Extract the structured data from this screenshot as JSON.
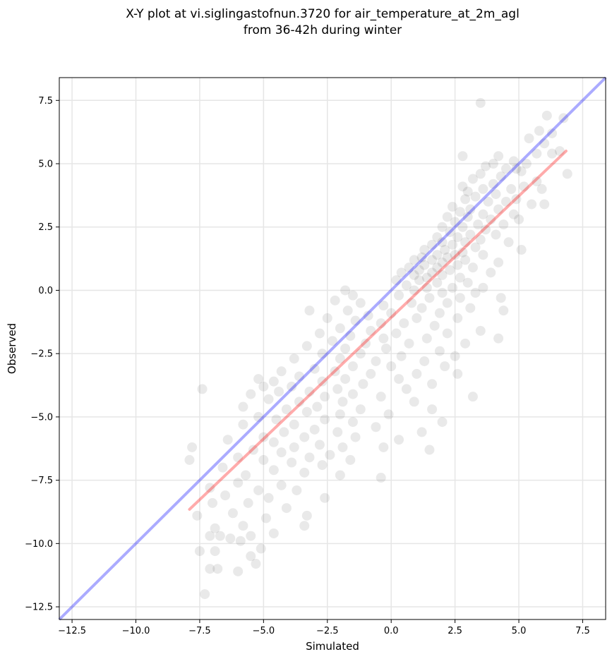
{
  "chart_data": {
    "type": "scatter",
    "title_lines": [
      "X-Y plot at vi.siglingastofnun.3720 for air_temperature_at_2m_agl",
      "from 36-42h during winter"
    ],
    "xlabel": "Simulated",
    "ylabel": "Observed",
    "xlim": [
      -13.0,
      8.4
    ],
    "ylim": [
      -13.0,
      8.4
    ],
    "xticks": [
      -12.5,
      -10.0,
      -7.5,
      -5.0,
      -2.5,
      0.0,
      2.5,
      5.0,
      7.5
    ],
    "yticks": [
      -12.5,
      -10.0,
      -7.5,
      -5.0,
      -2.5,
      0.0,
      2.5,
      5.0,
      7.5
    ],
    "xtick_labels": [
      "−12.5",
      "−10.0",
      "−7.5",
      "−5.0",
      "−2.5",
      "0.0",
      "2.5",
      "5.0",
      "7.5"
    ],
    "ytick_labels": [
      "−12.5",
      "−10.0",
      "−7.5",
      "−5.0",
      "−2.5",
      "0.0",
      "2.5",
      "5.0",
      "7.5"
    ],
    "grid": true,
    "colors": {
      "points": "#000000",
      "identity_line": "#0000ff",
      "fit_line": "#ff0000",
      "grid": "#e6e6e6"
    },
    "identity_line": {
      "x": [
        -13.0,
        8.4
      ],
      "y": [
        -13.0,
        8.4
      ]
    },
    "fit_line": {
      "x": [
        -7.9,
        6.85
      ],
      "y": [
        -8.65,
        5.5
      ]
    },
    "points": [
      [
        3.5,
        7.4
      ],
      [
        6.1,
        6.9
      ],
      [
        6.75,
        6.8
      ],
      [
        5.8,
        6.3
      ],
      [
        6.3,
        6.2
      ],
      [
        5.4,
        6.0
      ],
      [
        6.0,
        5.8
      ],
      [
        6.6,
        5.5
      ],
      [
        5.7,
        5.4
      ],
      [
        4.2,
        5.3
      ],
      [
        2.8,
        5.3
      ],
      [
        4.8,
        5.1
      ],
      [
        5.3,
        5.0
      ],
      [
        6.3,
        5.4
      ],
      [
        4.0,
        5.0
      ],
      [
        3.7,
        4.9
      ],
      [
        4.5,
        4.8
      ],
      [
        4.9,
        4.8
      ],
      [
        5.1,
        4.7
      ],
      [
        3.5,
        4.6
      ],
      [
        6.9,
        4.6
      ],
      [
        4.3,
        4.5
      ],
      [
        3.2,
        4.4
      ],
      [
        5.7,
        4.3
      ],
      [
        4.0,
        4.2
      ],
      [
        2.8,
        4.1
      ],
      [
        5.2,
        4.1
      ],
      [
        3.6,
        4.0
      ],
      [
        4.7,
        4.0
      ],
      [
        5.9,
        4.0
      ],
      [
        3.0,
        3.9
      ],
      [
        4.1,
        3.8
      ],
      [
        3.3,
        3.7
      ],
      [
        4.9,
        3.6
      ],
      [
        2.9,
        3.6
      ],
      [
        3.8,
        3.5
      ],
      [
        4.5,
        3.5
      ],
      [
        5.5,
        3.4
      ],
      [
        6.0,
        3.4
      ],
      [
        2.4,
        3.3
      ],
      [
        3.1,
        3.2
      ],
      [
        4.2,
        3.2
      ],
      [
        2.7,
        3.1
      ],
      [
        3.6,
        3.0
      ],
      [
        4.8,
        3.0
      ],
      [
        2.2,
        2.9
      ],
      [
        3.0,
        2.9
      ],
      [
        3.9,
        2.8
      ],
      [
        5.0,
        2.8
      ],
      [
        2.5,
        2.7
      ],
      [
        3.4,
        2.6
      ],
      [
        4.4,
        2.6
      ],
      [
        2.0,
        2.5
      ],
      [
        2.8,
        2.5
      ],
      [
        3.7,
        2.4
      ],
      [
        2.3,
        2.3
      ],
      [
        3.1,
        2.2
      ],
      [
        4.1,
        2.2
      ],
      [
        1.8,
        2.1
      ],
      [
        2.6,
        2.1
      ],
      [
        3.5,
        2.0
      ],
      [
        2.0,
        1.9
      ],
      [
        2.9,
        1.9
      ],
      [
        4.6,
        1.9
      ],
      [
        1.6,
        1.8
      ],
      [
        2.4,
        1.8
      ],
      [
        3.3,
        1.7
      ],
      [
        1.3,
        1.6
      ],
      [
        2.1,
        1.6
      ],
      [
        5.1,
        1.6
      ],
      [
        2.8,
        1.5
      ],
      [
        1.8,
        1.4
      ],
      [
        2.5,
        1.4
      ],
      [
        3.6,
        1.4
      ],
      [
        1.2,
        1.3
      ],
      [
        2.2,
        1.3
      ],
      [
        0.9,
        1.2
      ],
      [
        1.6,
        1.2
      ],
      [
        2.9,
        1.2
      ],
      [
        2.0,
        1.1
      ],
      [
        4.2,
        1.1
      ],
      [
        1.3,
        1.0
      ],
      [
        2.6,
        1.0
      ],
      [
        0.7,
        0.9
      ],
      [
        1.8,
        0.9
      ],
      [
        3.2,
        0.9
      ],
      [
        1.1,
        0.8
      ],
      [
        2.3,
        0.8
      ],
      [
        0.4,
        0.7
      ],
      [
        1.6,
        0.7
      ],
      [
        3.9,
        0.7
      ],
      [
        0.9,
        0.6
      ],
      [
        2.0,
        0.6
      ],
      [
        1.4,
        0.5
      ],
      [
        2.7,
        0.5
      ],
      [
        0.2,
        0.4
      ],
      [
        1.1,
        0.4
      ],
      [
        1.8,
        0.3
      ],
      [
        3.0,
        0.3
      ],
      [
        0.6,
        0.2
      ],
      [
        1.4,
        0.1
      ],
      [
        2.4,
        0.1
      ],
      [
        3.6,
        0.1
      ],
      [
        0.9,
        0.0
      ],
      [
        2.0,
        -0.1
      ],
      [
        3.3,
        -0.1
      ],
      [
        -1.8,
        0.0
      ],
      [
        -1.5,
        -0.2
      ],
      [
        0.3,
        -0.2
      ],
      [
        1.5,
        -0.3
      ],
      [
        2.7,
        -0.3
      ],
      [
        4.3,
        -0.3
      ],
      [
        -2.2,
        -0.4
      ],
      [
        -1.2,
        -0.5
      ],
      [
        0.8,
        -0.5
      ],
      [
        2.2,
        -0.5
      ],
      [
        -0.3,
        -0.6
      ],
      [
        1.2,
        -0.7
      ],
      [
        3.1,
        -0.7
      ],
      [
        -1.7,
        -0.8
      ],
      [
        -3.2,
        -0.8
      ],
      [
        4.4,
        -0.8
      ],
      [
        0.0,
        -0.9
      ],
      [
        1.9,
        -0.9
      ],
      [
        -0.9,
        -1.0
      ],
      [
        -2.5,
        -1.1
      ],
      [
        1.0,
        -1.1
      ],
      [
        2.6,
        -1.1
      ],
      [
        -1.4,
        -1.2
      ],
      [
        -0.4,
        -1.3
      ],
      [
        0.5,
        -1.3
      ],
      [
        1.7,
        -1.4
      ],
      [
        -2.0,
        -1.5
      ],
      [
        -0.8,
        -1.6
      ],
      [
        3.5,
        -1.6
      ],
      [
        -2.8,
        -1.7
      ],
      [
        0.2,
        -1.7
      ],
      [
        2.2,
        -1.7
      ],
      [
        -1.6,
        -1.8
      ],
      [
        -0.3,
        -1.9
      ],
      [
        1.4,
        -1.9
      ],
      [
        4.2,
        -1.9
      ],
      [
        -2.3,
        -2.0
      ],
      [
        -1.0,
        -2.1
      ],
      [
        0.7,
        -2.1
      ],
      [
        2.9,
        -2.1
      ],
      [
        -3.3,
        -2.2
      ],
      [
        -1.8,
        -2.3
      ],
      [
        -0.2,
        -2.3
      ],
      [
        1.9,
        -2.4
      ],
      [
        -2.7,
        -2.5
      ],
      [
        -1.2,
        -2.5
      ],
      [
        0.4,
        -2.6
      ],
      [
        2.5,
        -2.6
      ],
      [
        -3.8,
        -2.7
      ],
      [
        -2.0,
        -2.7
      ],
      [
        -0.6,
        -2.8
      ],
      [
        1.3,
        -2.8
      ],
      [
        -1.5,
        -3.0
      ],
      [
        0.0,
        -3.0
      ],
      [
        2.1,
        -3.0
      ],
      [
        -3.0,
        -3.1
      ],
      [
        -4.3,
        -3.2
      ],
      [
        -2.2,
        -3.2
      ],
      [
        -0.8,
        -3.3
      ],
      [
        1.0,
        -3.3
      ],
      [
        2.6,
        -3.3
      ],
      [
        -3.6,
        -3.4
      ],
      [
        -1.8,
        -3.5
      ],
      [
        0.3,
        -3.5
      ],
      [
        -5.2,
        -3.5
      ],
      [
        -4.6,
        -3.6
      ],
      [
        -2.7,
        -3.6
      ],
      [
        -1.1,
        -3.7
      ],
      [
        1.6,
        -3.7
      ],
      [
        -5.0,
        -3.8
      ],
      [
        -3.9,
        -3.8
      ],
      [
        -2.1,
        -3.9
      ],
      [
        0.6,
        -3.9
      ],
      [
        -4.4,
        -4.0
      ],
      [
        -3.2,
        -4.0
      ],
      [
        -1.5,
        -4.1
      ],
      [
        -7.4,
        -3.9
      ],
      [
        -5.5,
        -4.1
      ],
      [
        -2.6,
        -4.2
      ],
      [
        -0.4,
        -4.2
      ],
      [
        3.2,
        -4.2
      ],
      [
        -4.8,
        -4.3
      ],
      [
        -3.6,
        -4.4
      ],
      [
        -1.9,
        -4.4
      ],
      [
        0.9,
        -4.4
      ],
      [
        -2.9,
        -4.6
      ],
      [
        -5.8,
        -4.6
      ],
      [
        -4.1,
        -4.7
      ],
      [
        -1.2,
        -4.7
      ],
      [
        1.6,
        -4.7
      ],
      [
        -3.3,
        -4.8
      ],
      [
        -2.0,
        -4.9
      ],
      [
        -0.1,
        -4.9
      ],
      [
        -5.2,
        -5.0
      ],
      [
        -4.5,
        -5.1
      ],
      [
        -2.6,
        -5.1
      ],
      [
        -1.5,
        -5.2
      ],
      [
        2.0,
        -5.2
      ],
      [
        -3.8,
        -5.3
      ],
      [
        -5.8,
        -5.3
      ],
      [
        -0.6,
        -5.4
      ],
      [
        -3.0,
        -5.5
      ],
      [
        -4.2,
        -5.6
      ],
      [
        -2.1,
        -5.6
      ],
      [
        1.2,
        -5.6
      ],
      [
        -5.0,
        -5.8
      ],
      [
        -3.4,
        -5.8
      ],
      [
        -1.4,
        -5.8
      ],
      [
        0.3,
        -5.9
      ],
      [
        -6.4,
        -5.9
      ],
      [
        -4.6,
        -6.0
      ],
      [
        -2.8,
        -6.1
      ],
      [
        -3.8,
        -6.2
      ],
      [
        -1.9,
        -6.2
      ],
      [
        -0.3,
        -6.2
      ],
      [
        -5.4,
        -6.3
      ],
      [
        1.5,
        -6.3
      ],
      [
        -7.8,
        -6.2
      ],
      [
        -4.3,
        -6.4
      ],
      [
        -2.4,
        -6.5
      ],
      [
        -3.2,
        -6.6
      ],
      [
        -6.0,
        -6.6
      ],
      [
        -5.0,
        -6.7
      ],
      [
        -1.6,
        -6.7
      ],
      [
        -7.9,
        -6.7
      ],
      [
        -3.9,
        -6.8
      ],
      [
        -2.7,
        -6.9
      ],
      [
        -6.6,
        -7.0
      ],
      [
        -4.6,
        -7.1
      ],
      [
        -5.7,
        -7.3
      ],
      [
        -3.4,
        -7.2
      ],
      [
        -2.0,
        -7.3
      ],
      [
        -0.4,
        -7.4
      ],
      [
        -6.0,
        -7.6
      ],
      [
        -4.3,
        -7.7
      ],
      [
        -7.1,
        -7.8
      ],
      [
        -5.2,
        -7.9
      ],
      [
        -3.7,
        -7.9
      ],
      [
        -6.5,
        -8.1
      ],
      [
        -4.8,
        -8.2
      ],
      [
        -2.6,
        -8.2
      ],
      [
        -7.0,
        -8.4
      ],
      [
        -5.6,
        -8.4
      ],
      [
        -4.1,
        -8.6
      ],
      [
        -6.2,
        -8.8
      ],
      [
        -3.3,
        -8.9
      ],
      [
        -7.6,
        -8.9
      ],
      [
        -4.9,
        -9.0
      ],
      [
        -5.8,
        -9.3
      ],
      [
        -3.4,
        -9.3
      ],
      [
        -6.9,
        -9.4
      ],
      [
        -4.6,
        -9.6
      ],
      [
        -5.5,
        -9.7
      ],
      [
        -6.7,
        -9.7
      ],
      [
        -7.1,
        -9.7
      ],
      [
        -6.3,
        -9.8
      ],
      [
        -5.9,
        -9.9
      ],
      [
        -5.1,
        -10.2
      ],
      [
        -6.9,
        -10.3
      ],
      [
        -7.5,
        -10.3
      ],
      [
        -5.5,
        -10.5
      ],
      [
        -5.3,
        -10.8
      ],
      [
        -7.1,
        -11.0
      ],
      [
        -6.0,
        -11.1
      ],
      [
        -6.8,
        -11.0
      ],
      [
        -7.3,
        -12.0
      ]
    ]
  }
}
